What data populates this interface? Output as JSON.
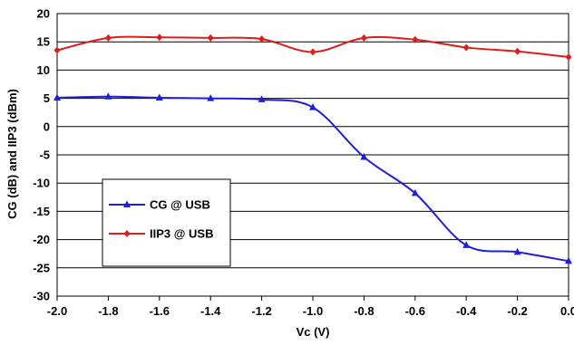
{
  "chart_data": {
    "type": "line",
    "title": "",
    "xlabel": "Vc (V)",
    "ylabel": "CG (dB) and IIP3 (dBm)",
    "x": [
      -2.0,
      -1.8,
      -1.6,
      -1.4,
      -1.2,
      -1.0,
      -0.8,
      -0.6,
      -0.4,
      -0.2,
      0.0
    ],
    "x_tick_labels": [
      "-2.0",
      "-1.8",
      "-1.6",
      "-1.4",
      "-1.2",
      "-1.0",
      "-0.8",
      "-0.6",
      "-0.4",
      "-0.2",
      "0.0"
    ],
    "xlim": [
      -2.0,
      0.0
    ],
    "ylim": [
      -30,
      20
    ],
    "y_ticks": [
      20,
      15,
      10,
      5,
      0,
      -5,
      -10,
      -15,
      -20,
      -25,
      -30
    ],
    "grid": "horizontal",
    "legend_position": "lower-left",
    "series": [
      {
        "name": "CG @ USB",
        "color": "#1f1fd8",
        "marker": "triangle",
        "values": [
          5.1,
          5.3,
          5.1,
          5.0,
          4.8,
          3.4,
          -5.4,
          -11.8,
          -21.0,
          -22.2,
          -23.8
        ]
      },
      {
        "name": "IIP3 @ USB",
        "color": "#e01b1b",
        "marker": "diamond",
        "values": [
          13.5,
          15.7,
          15.8,
          15.7,
          15.5,
          13.2,
          15.7,
          15.4,
          14.0,
          13.3,
          12.3
        ]
      }
    ]
  }
}
